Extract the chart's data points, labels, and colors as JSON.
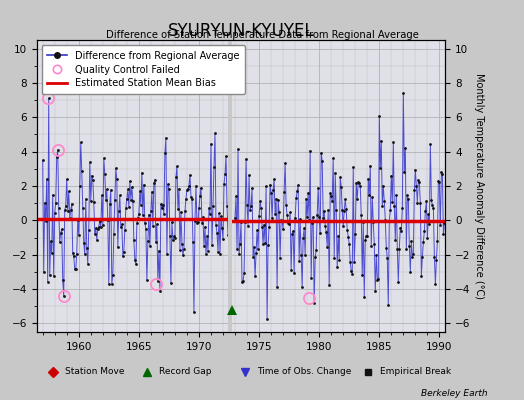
{
  "title": "SYURYUN-KYUYEL",
  "subtitle": "Difference of Station Temperature Data from Regional Average",
  "ylabel": "Monthly Temperature Anomaly Difference (°C)",
  "xlim": [
    1956.5,
    1990.5
  ],
  "ylim": [
    -6.5,
    10.5
  ],
  "yticks": [
    -6,
    -4,
    -2,
    0,
    2,
    4,
    6,
    8,
    10
  ],
  "xticks": [
    1960,
    1965,
    1970,
    1975,
    1980,
    1985,
    1990
  ],
  "bg_color": "#c8c8c8",
  "plot_bg_color": "#e0e0e8",
  "line_color": "#3333cc",
  "dot_color": "#111111",
  "bias_color": "#dd0000",
  "qc_color": "#ff88cc",
  "bias_y1": 0.08,
  "bias_y2": -0.05,
  "gap_x": 1972.58,
  "record_gap_x": 1972.75,
  "record_gap_y": -5.2,
  "qc_failed_points": [
    [
      1957.42,
      7.1
    ],
    [
      1958.25,
      4.1
    ],
    [
      1958.75,
      -4.4
    ],
    [
      1966.42,
      -3.7
    ],
    [
      1979.17,
      -4.5
    ]
  ],
  "seed": 7
}
